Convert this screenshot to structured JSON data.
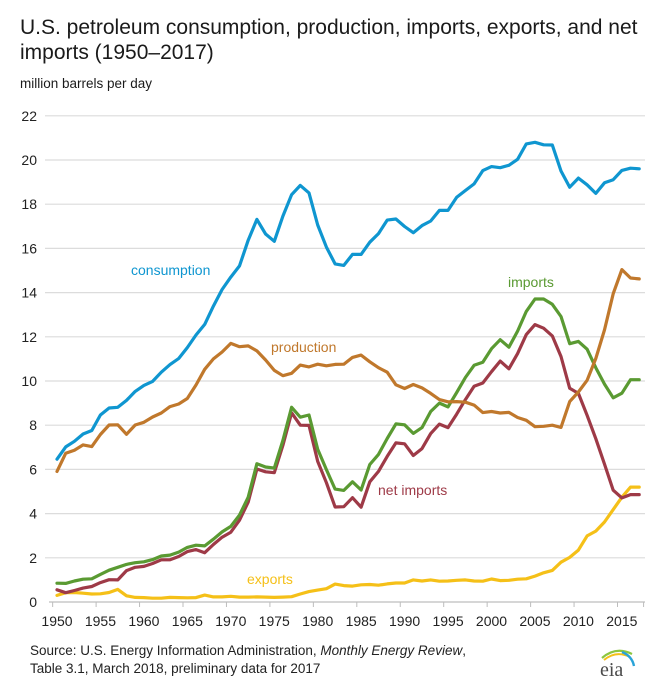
{
  "title": "U.S. petroleum consumption, production, imports, exports, and net imports (1950–2017)",
  "subtitle": "million barrels per day",
  "source": {
    "prefix": "Source: U.S. Energy Information Administration, ",
    "publication": "Monthly Energy Review",
    "suffix": ",",
    "line2": "Table 3.1, March 2018, preliminary data for 2017"
  },
  "logo_text": "eia",
  "chart_data": {
    "type": "line",
    "title": "U.S. petroleum consumption, production, imports, exports, and net imports (1950–2017)",
    "ylabel": "million barrels per day",
    "xlabel": "",
    "ylim": [
      0,
      22
    ],
    "xlim": [
      1950,
      2017
    ],
    "grid": true,
    "yticks": [
      0,
      2,
      4,
      6,
      8,
      10,
      12,
      14,
      16,
      18,
      20,
      22
    ],
    "xticks": [
      1950,
      1955,
      1960,
      1965,
      1970,
      1975,
      1980,
      1985,
      1990,
      1995,
      2000,
      2005,
      2010,
      2015
    ],
    "x": [
      1950,
      1951,
      1952,
      1953,
      1954,
      1955,
      1956,
      1957,
      1958,
      1959,
      1960,
      1961,
      1962,
      1963,
      1964,
      1965,
      1966,
      1967,
      1968,
      1969,
      1970,
      1971,
      1972,
      1973,
      1974,
      1975,
      1976,
      1977,
      1978,
      1979,
      1980,
      1981,
      1982,
      1983,
      1984,
      1985,
      1986,
      1987,
      1988,
      1989,
      1990,
      1991,
      1992,
      1993,
      1994,
      1995,
      1996,
      1997,
      1998,
      1999,
      2000,
      2001,
      2002,
      2003,
      2004,
      2005,
      2006,
      2007,
      2008,
      2009,
      2010,
      2011,
      2012,
      2013,
      2014,
      2015,
      2016,
      2017
    ],
    "series": [
      {
        "name": "consumption",
        "color": "#0f96d0",
        "values": [
          6.46,
          7.02,
          7.27,
          7.6,
          7.76,
          8.46,
          8.78,
          8.81,
          9.12,
          9.53,
          9.8,
          9.98,
          10.4,
          10.74,
          11.02,
          11.51,
          12.08,
          12.56,
          13.39,
          14.14,
          14.7,
          15.21,
          16.37,
          17.31,
          16.65,
          16.32,
          17.46,
          18.43,
          18.85,
          18.51,
          17.06,
          16.06,
          15.3,
          15.23,
          15.73,
          15.73,
          16.28,
          16.67,
          17.28,
          17.33,
          16.99,
          16.71,
          17.03,
          17.24,
          17.72,
          17.72,
          18.31,
          18.62,
          18.92,
          19.52,
          19.7,
          19.65,
          19.76,
          20.03,
          20.73,
          20.8,
          20.69,
          20.68,
          19.5,
          18.77,
          19.18,
          18.88,
          18.49,
          18.97,
          19.11,
          19.53,
          19.63,
          19.6
        ]
      },
      {
        "name": "production",
        "color": "#c0782c",
        "values": [
          5.91,
          6.73,
          6.87,
          7.11,
          7.03,
          7.58,
          8.01,
          8.02,
          7.59,
          8.01,
          8.13,
          8.37,
          8.55,
          8.84,
          8.96,
          9.21,
          9.82,
          10.53,
          11.0,
          11.31,
          11.7,
          11.55,
          11.59,
          11.36,
          10.95,
          10.48,
          10.24,
          10.35,
          10.72,
          10.64,
          10.76,
          10.69,
          10.75,
          10.76,
          11.07,
          11.17,
          10.87,
          10.6,
          10.4,
          9.83,
          9.66,
          9.84,
          9.69,
          9.44,
          9.16,
          9.06,
          9.07,
          9.04,
          8.91,
          8.57,
          8.62,
          8.55,
          8.58,
          8.35,
          8.22,
          7.93,
          7.95,
          8.0,
          7.9,
          9.07,
          9.5,
          10.03,
          11.02,
          12.31,
          13.95,
          15.04,
          14.66,
          14.62
        ]
      },
      {
        "name": "imports",
        "color": "#5a9a32",
        "values": [
          0.85,
          0.84,
          0.95,
          1.03,
          1.05,
          1.25,
          1.44,
          1.57,
          1.7,
          1.78,
          1.82,
          1.92,
          2.08,
          2.12,
          2.26,
          2.47,
          2.57,
          2.54,
          2.84,
          3.17,
          3.42,
          3.93,
          4.74,
          6.26,
          6.11,
          6.06,
          7.31,
          8.81,
          8.36,
          8.46,
          6.91,
          5.99,
          5.11,
          5.05,
          5.44,
          5.07,
          6.22,
          6.68,
          7.4,
          8.06,
          8.02,
          7.63,
          7.89,
          8.62,
          9.0,
          8.83,
          9.48,
          10.16,
          10.71,
          10.85,
          11.46,
          11.87,
          11.53,
          12.26,
          13.15,
          13.71,
          13.71,
          13.47,
          12.92,
          11.69,
          11.79,
          11.44,
          10.6,
          9.86,
          9.24,
          9.45,
          10.06,
          10.06
        ]
      },
      {
        "name": "net imports",
        "color": "#9e3a47",
        "values": [
          0.55,
          0.42,
          0.52,
          0.63,
          0.7,
          0.88,
          1.01,
          1.0,
          1.42,
          1.57,
          1.61,
          1.74,
          1.91,
          1.91,
          2.06,
          2.28,
          2.37,
          2.23,
          2.6,
          2.93,
          3.16,
          3.7,
          4.52,
          6.02,
          5.89,
          5.85,
          7.09,
          8.56,
          8.0,
          7.99,
          6.36,
          5.4,
          4.3,
          4.31,
          4.72,
          4.29,
          5.44,
          5.91,
          6.59,
          7.2,
          7.16,
          6.63,
          6.94,
          7.62,
          8.05,
          7.89,
          8.5,
          9.16,
          9.76,
          9.91,
          10.42,
          10.9,
          10.55,
          11.24,
          12.1,
          12.55,
          12.39,
          12.04,
          11.11,
          9.67,
          9.44,
          8.45,
          7.39,
          6.24,
          5.06,
          4.71,
          4.86,
          4.86
        ]
      },
      {
        "name": "exports",
        "color": "#f5c018",
        "values": [
          0.3,
          0.42,
          0.43,
          0.4,
          0.36,
          0.37,
          0.43,
          0.57,
          0.28,
          0.21,
          0.2,
          0.17,
          0.17,
          0.21,
          0.2,
          0.19,
          0.2,
          0.31,
          0.23,
          0.23,
          0.26,
          0.22,
          0.22,
          0.23,
          0.22,
          0.21,
          0.22,
          0.24,
          0.36,
          0.47,
          0.54,
          0.6,
          0.81,
          0.74,
          0.72,
          0.78,
          0.79,
          0.76,
          0.82,
          0.86,
          0.86,
          1.0,
          0.95,
          1.0,
          0.94,
          0.95,
          0.98,
          1.0,
          0.95,
          0.94,
          1.04,
          0.97,
          0.98,
          1.03,
          1.05,
          1.17,
          1.32,
          1.43,
          1.8,
          2.02,
          2.35,
          2.99,
          3.21,
          3.62,
          4.18,
          4.74,
          5.2,
          5.2
        ]
      }
    ],
    "annotations": [
      {
        "text": "consumption",
        "series": "consumption"
      },
      {
        "text": "production",
        "series": "production"
      },
      {
        "text": "imports",
        "series": "imports"
      },
      {
        "text": "net imports",
        "series": "net imports"
      },
      {
        "text": "exports",
        "series": "exports"
      }
    ]
  }
}
